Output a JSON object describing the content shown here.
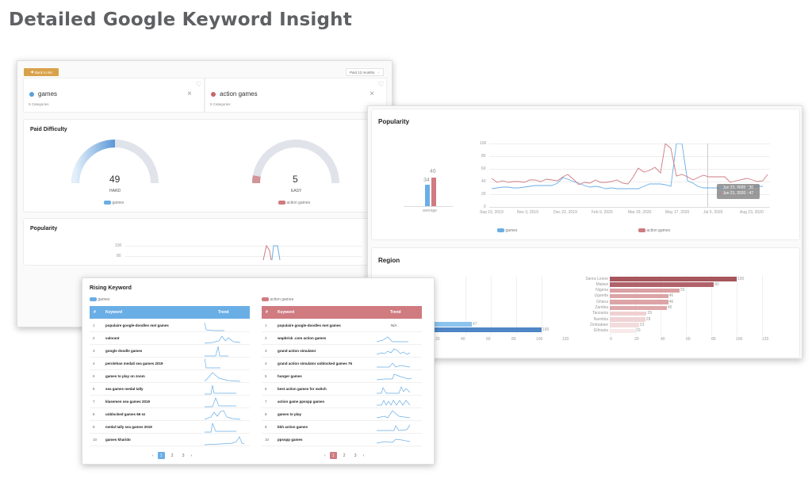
{
  "page_title": "Detailed Google Keyword Insight",
  "colors": {
    "games": "#6aaee6",
    "action_games": "#cf7b80",
    "back_button": "#d9a24a"
  },
  "overview": {
    "back_button_label": "Back to list",
    "period_select": "Past 12 months",
    "keywords": [
      {
        "name": "games",
        "categories": "5 Categories",
        "color": "#5b9fdd"
      },
      {
        "name": "action games",
        "categories": "5 Categories",
        "color": "#c9656b"
      }
    ],
    "paid_difficulty": {
      "title": "Paid Difficulty",
      "gauges": [
        {
          "value": "49",
          "label": "HARD",
          "legend": "games"
        },
        {
          "value": "5",
          "label": "EASY",
          "legend": "action games"
        }
      ]
    },
    "popularity_preview": {
      "title": "Popularity",
      "ticks": [
        "100",
        "80"
      ]
    }
  },
  "popularity": {
    "title": "Popularity",
    "average_label": "average",
    "average_values": [
      "34",
      "46"
    ],
    "y_ticks": [
      "100",
      "80",
      "60",
      "40",
      "20",
      "0"
    ],
    "x_ticks": [
      "Sep 15, 2019",
      "Nov 3, 2019",
      "Dec 22, 2019",
      "Feb 9, 2020",
      "Mar 29, 2020",
      "May 17, 2020",
      "Jul 5, 2020",
      "Aug 23, 2020"
    ],
    "tooltip": [
      {
        "text": "Jun 21, 2020 : 30",
        "color": "#6aaee6"
      },
      {
        "text": "Jun 21, 2020 : 47",
        "color": "#cf7b80"
      }
    ],
    "legend": [
      "games",
      "action games"
    ]
  },
  "region": {
    "title": "Region",
    "left_visible_values": [
      "47",
      "100"
    ],
    "left_x_ticks": [
      "20",
      "40",
      "60",
      "80",
      "100",
      "120"
    ],
    "right_x_ticks": [
      "0",
      "20",
      "40",
      "60",
      "80",
      "100",
      "120"
    ]
  },
  "rising": {
    "title": "Rising Keyword",
    "columns": [
      "#",
      "Keyword",
      "Trend"
    ],
    "games": {
      "legend": "games",
      "rows": [
        {
          "n": "1",
          "kw": "populaire google-doodles met games"
        },
        {
          "n": "2",
          "kw": "valorant"
        },
        {
          "n": "3",
          "kw": "google doodle games"
        },
        {
          "n": "4",
          "kw": "perolehan medali sea games 2019"
        },
        {
          "n": "5",
          "kw": "games to play on zoom"
        },
        {
          "n": "6",
          "kw": "sea games medal tally"
        },
        {
          "n": "7",
          "kw": "klasemen sea games 2019"
        },
        {
          "n": "8",
          "kw": "unblocked games 66 ez"
        },
        {
          "n": "9",
          "kw": "medal tally sea games 2019"
        },
        {
          "n": "10",
          "kw": "games kharido"
        }
      ],
      "pages": [
        "1",
        "2",
        "3"
      ]
    },
    "action": {
      "legend": "action games",
      "rows": [
        {
          "n": "1",
          "kw": "populaire google-doodles met games",
          "trend_text": "N/A"
        },
        {
          "n": "2",
          "kw": "wapbrick .com action games"
        },
        {
          "n": "3",
          "kw": "grand action simulator"
        },
        {
          "n": "4",
          "kw": "grand action simulator unblocked games 76"
        },
        {
          "n": "5",
          "kw": "hunger games"
        },
        {
          "n": "6",
          "kw": "best action games for switch"
        },
        {
          "n": "7",
          "kw": "action game ppsspp games"
        },
        {
          "n": "8",
          "kw": "games to play"
        },
        {
          "n": "9",
          "kw": "kbh action games"
        },
        {
          "n": "10",
          "kw": "ppsspp games"
        }
      ],
      "pages": [
        "1",
        "2",
        "3"
      ]
    },
    "prev": "‹",
    "next": "›"
  },
  "chart_data": [
    {
      "type": "line",
      "title": "Popularity",
      "x_tick_labels": [
        "Sep 15, 2019",
        "Nov 3, 2019",
        "Dec 22, 2019",
        "Feb 9, 2020",
        "Mar 29, 2020",
        "May 17, 2020",
        "Jul 5, 2020",
        "Aug 23, 2020"
      ],
      "ylim": [
        0,
        100
      ],
      "grid": true,
      "legend": [
        "games",
        "action games"
      ],
      "series": [
        {
          "name": "games",
          "values": [
            29,
            30,
            31,
            31,
            30,
            30,
            31,
            32,
            33,
            33,
            33,
            33,
            37,
            46,
            44,
            40,
            37,
            34,
            31,
            33,
            31,
            29,
            30,
            29,
            29,
            29,
            29,
            29,
            32,
            36,
            36,
            36,
            35,
            33,
            100,
            100,
            41,
            37,
            33,
            30,
            30,
            30,
            30,
            30,
            30,
            30,
            28,
            29,
            30,
            31,
            32,
            32
          ]
        },
        {
          "name": "action games",
          "values": [
            45,
            39,
            41,
            39,
            40,
            40,
            39,
            42,
            42,
            40,
            44,
            43,
            41,
            48,
            51,
            44,
            35,
            39,
            37,
            42,
            39,
            39,
            40,
            42,
            38,
            36,
            46,
            61,
            55,
            57,
            63,
            54,
            100,
            92,
            49,
            51,
            47,
            42,
            46,
            50,
            47,
            47,
            48,
            47,
            39,
            41,
            43,
            45,
            42,
            40,
            40,
            51
          ]
        }
      ],
      "annotations": [
        "Jun 21, 2020 : 30",
        "Jun 21, 2020 : 47"
      ]
    },
    {
      "type": "bar",
      "title": "Popularity average",
      "categories": [
        "average"
      ],
      "series": [
        {
          "name": "games",
          "values": [
            34
          ]
        },
        {
          "name": "action games",
          "values": [
            46
          ]
        }
      ]
    },
    {
      "type": "bar",
      "title": "Region (action games)",
      "orientation": "horizontal",
      "categories": [
        "Sierra Leone",
        "Malawi",
        "Nigeria",
        "Uganda",
        "Ghana",
        "Zambia",
        "Tanzania",
        "Namibia",
        "Zimbabwe",
        "Ethiopia"
      ],
      "values": [
        100,
        82,
        55,
        46,
        46,
        45,
        29,
        28,
        23,
        20
      ],
      "xlim": [
        0,
        120
      ]
    },
    {
      "type": "bar",
      "title": "Region (games, partially visible)",
      "orientation": "horizontal",
      "values": [
        47,
        100
      ],
      "xlim": [
        0,
        120
      ]
    },
    {
      "type": "gauge",
      "title": "Paid Difficulty",
      "series": [
        {
          "name": "games",
          "value": 49,
          "label": "HARD"
        },
        {
          "name": "action games",
          "value": 5,
          "label": "EASY"
        }
      ],
      "range": [
        0,
        100
      ]
    }
  ]
}
